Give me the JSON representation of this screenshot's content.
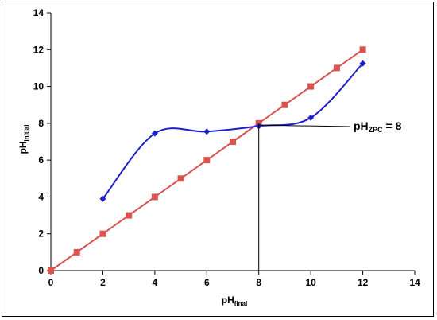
{
  "chart_data": {
    "type": "line",
    "title": "",
    "xlabel": {
      "main": "pH",
      "sub": "final"
    },
    "ylabel": {
      "main": "pH",
      "sub": "initial"
    },
    "xlim": [
      0,
      14
    ],
    "ylim": [
      0,
      14
    ],
    "x_ticks": [
      0,
      2,
      4,
      6,
      8,
      10,
      12,
      14
    ],
    "y_ticks": [
      0,
      2,
      4,
      6,
      8,
      10,
      12,
      14
    ],
    "grid": false,
    "legend": "none",
    "series": [
      {
        "color": "#d9534f",
        "marker": "square",
        "smooth": false,
        "x": [
          0,
          1,
          2,
          3,
          4,
          5,
          6,
          7,
          8,
          9,
          10,
          11,
          12
        ],
        "y": [
          0,
          1,
          2,
          3,
          4,
          5,
          6,
          7,
          8,
          9,
          10,
          11,
          12
        ]
      },
      {
        "color": "#1f1fcc",
        "marker": "diamond",
        "smooth": true,
        "x": [
          2,
          4,
          6,
          8,
          10,
          12
        ],
        "y": [
          3.9,
          7.45,
          7.55,
          7.85,
          8.3,
          11.25
        ]
      }
    ],
    "annotation": {
      "main": "pH",
      "sub": "ZPC",
      "suffix": " = 8",
      "point": [
        8,
        7.9
      ],
      "drop_line_x": 8
    }
  }
}
